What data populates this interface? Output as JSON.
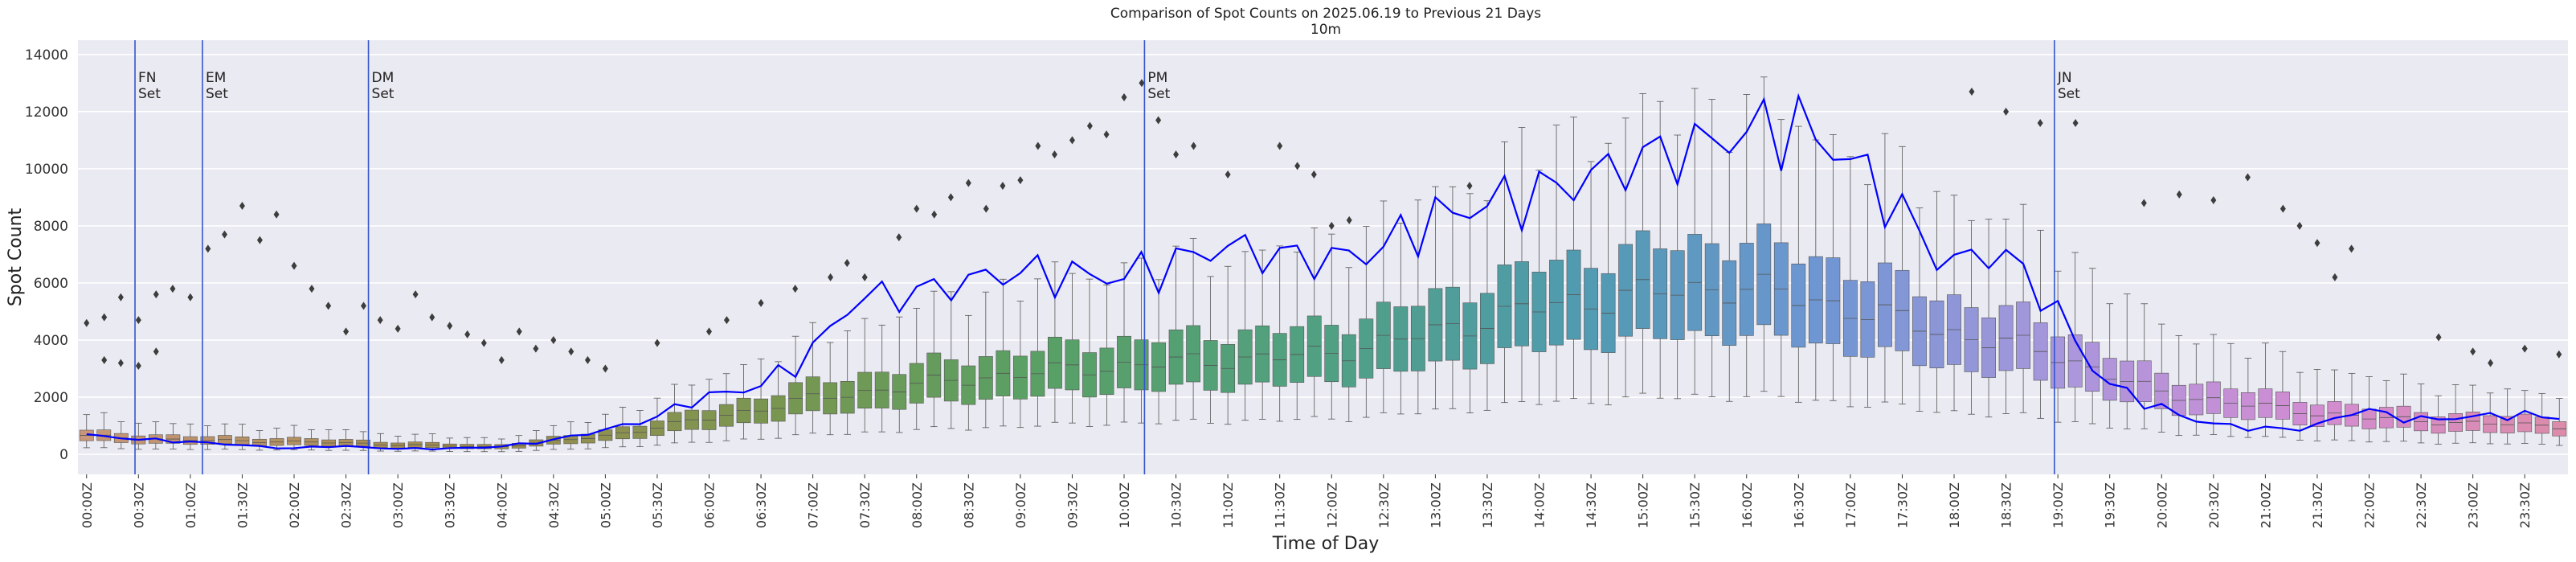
{
  "chart_data": {
    "type": "box",
    "title": "Comparison of Spot Counts on 2025.06.19 to Previous 21 Days",
    "subtitle": "10m",
    "xlabel": "Time of Day",
    "ylabel": "Spot Count",
    "ylim": [
      -700,
      14500
    ],
    "yticks": [
      0,
      2000,
      4000,
      6000,
      8000,
      10000,
      12000,
      14000
    ],
    "bin_minutes": 10,
    "xtick_labels": [
      "00:00Z",
      "00:30Z",
      "01:00Z",
      "01:30Z",
      "02:00Z",
      "02:30Z",
      "03:00Z",
      "03:30Z",
      "04:00Z",
      "04:30Z",
      "05:00Z",
      "05:30Z",
      "06:00Z",
      "06:30Z",
      "07:00Z",
      "07:30Z",
      "08:00Z",
      "08:30Z",
      "09:00Z",
      "09:30Z",
      "10:00Z",
      "10:30Z",
      "11:00Z",
      "11:30Z",
      "12:00Z",
      "12:30Z",
      "13:00Z",
      "13:30Z",
      "14:00Z",
      "14:30Z",
      "15:00Z",
      "15:30Z",
      "16:00Z",
      "16:30Z",
      "17:00Z",
      "17:30Z",
      "18:00Z",
      "18:30Z",
      "19:00Z",
      "19:30Z",
      "20:00Z",
      "20:30Z",
      "21:00Z",
      "21:30Z",
      "22:00Z",
      "22:30Z",
      "23:00Z",
      "23:30Z"
    ],
    "grid": true,
    "markers": [
      {
        "line1": "FN",
        "line2": "Set",
        "time_hours": 0.55
      },
      {
        "line1": "EM",
        "line2": "Set",
        "time_hours": 1.2
      },
      {
        "line1": "DM",
        "line2": "Set",
        "time_hours": 2.8
      },
      {
        "line1": "PM",
        "line2": "Set",
        "time_hours": 10.28
      },
      {
        "line1": "JN",
        "line2": "Set",
        "time_hours": 19.05
      }
    ],
    "median_profile": {
      "hours": [
        0,
        1,
        2,
        3,
        4,
        5,
        6,
        7,
        8,
        9,
        10,
        11,
        12,
        13,
        14,
        15,
        16,
        17,
        18,
        19,
        20,
        21,
        22,
        23,
        23.83
      ],
      "values": [
        650,
        500,
        450,
        350,
        250,
        600,
        1200,
        1900,
        2400,
        2800,
        3100,
        3300,
        3500,
        4200,
        5100,
        5600,
        5900,
        5200,
        4300,
        3600,
        2200,
        1700,
        1300,
        1100,
        1000
      ]
    },
    "iqr_half_fraction": 0.28,
    "whisker_low_fraction": 0.35,
    "whisker_high_fraction": 2.1,
    "current_day_series": {
      "name": "2025.06.19",
      "color": "#0000ff",
      "hours": [
        0,
        0.5,
        1,
        1.5,
        2,
        2.5,
        3,
        3.5,
        4,
        4.5,
        5,
        5.5,
        6,
        6.5,
        7,
        7.5,
        8,
        8.5,
        9,
        9.5,
        10,
        10.5,
        11,
        11.5,
        12,
        12.5,
        13,
        13.5,
        14,
        14.5,
        15,
        15.5,
        16,
        16.5,
        17,
        17.5,
        18,
        18.5,
        19,
        19.5,
        20,
        20.5,
        21,
        21.5,
        22,
        22.5,
        23,
        23.5,
        23.83
      ],
      "values": [
        700,
        550,
        450,
        350,
        200,
        300,
        200,
        200,
        250,
        450,
        800,
        1200,
        2000,
        2300,
        3300,
        5500,
        5600,
        6000,
        6400,
        6300,
        6200,
        6600,
        7300,
        7000,
        6800,
        7100,
        8200,
        8700,
        9100,
        9600,
        10300,
        10700,
        11200,
        11600,
        10600,
        8800,
        6600,
        7200,
        5400,
        2600,
        1700,
        1100,
        900,
        900,
        1600,
        1200,
        1300,
        1400,
        1300
      ]
    },
    "outliers": [
      {
        "t": 0.0,
        "v": 4600
      },
      {
        "t": 0.17,
        "v": 3300
      },
      {
        "t": 0.17,
        "v": 4800
      },
      {
        "t": 0.33,
        "v": 3200
      },
      {
        "t": 0.33,
        "v": 5500
      },
      {
        "t": 0.5,
        "v": 3100
      },
      {
        "t": 0.5,
        "v": 4700
      },
      {
        "t": 0.67,
        "v": 3600
      },
      {
        "t": 0.67,
        "v": 5600
      },
      {
        "t": 0.83,
        "v": 5800
      },
      {
        "t": 1.0,
        "v": 5500
      },
      {
        "t": 1.17,
        "v": 7200
      },
      {
        "t": 1.33,
        "v": 7700
      },
      {
        "t": 1.5,
        "v": 8700
      },
      {
        "t": 1.67,
        "v": 7500
      },
      {
        "t": 1.83,
        "v": 8400
      },
      {
        "t": 2.0,
        "v": 6600
      },
      {
        "t": 2.17,
        "v": 5800
      },
      {
        "t": 2.33,
        "v": 5200
      },
      {
        "t": 2.5,
        "v": 4300
      },
      {
        "t": 2.67,
        "v": 5200
      },
      {
        "t": 2.83,
        "v": 4700
      },
      {
        "t": 3.0,
        "v": 4400
      },
      {
        "t": 3.17,
        "v": 5600
      },
      {
        "t": 3.33,
        "v": 4800
      },
      {
        "t": 3.5,
        "v": 4500
      },
      {
        "t": 3.67,
        "v": 4200
      },
      {
        "t": 3.83,
        "v": 3900
      },
      {
        "t": 4.0,
        "v": 3300
      },
      {
        "t": 4.17,
        "v": 4300
      },
      {
        "t": 4.33,
        "v": 3700
      },
      {
        "t": 4.5,
        "v": 4000
      },
      {
        "t": 4.67,
        "v": 3600
      },
      {
        "t": 4.83,
        "v": 3300
      },
      {
        "t": 5.0,
        "v": 3000
      },
      {
        "t": 5.5,
        "v": 3900
      },
      {
        "t": 6.0,
        "v": 4300
      },
      {
        "t": 6.17,
        "v": 4700
      },
      {
        "t": 6.5,
        "v": 5300
      },
      {
        "t": 6.83,
        "v": 5800
      },
      {
        "t": 7.17,
        "v": 6200
      },
      {
        "t": 7.33,
        "v": 6700
      },
      {
        "t": 7.5,
        "v": 6200
      },
      {
        "t": 7.83,
        "v": 7600
      },
      {
        "t": 8.0,
        "v": 8600
      },
      {
        "t": 8.17,
        "v": 8400
      },
      {
        "t": 8.33,
        "v": 9000
      },
      {
        "t": 8.5,
        "v": 9500
      },
      {
        "t": 8.67,
        "v": 8600
      },
      {
        "t": 8.83,
        "v": 9400
      },
      {
        "t": 9.0,
        "v": 9600
      },
      {
        "t": 9.17,
        "v": 10800
      },
      {
        "t": 9.33,
        "v": 10500
      },
      {
        "t": 9.5,
        "v": 11000
      },
      {
        "t": 9.67,
        "v": 11500
      },
      {
        "t": 9.83,
        "v": 11200
      },
      {
        "t": 10.0,
        "v": 12500
      },
      {
        "t": 10.17,
        "v": 13000
      },
      {
        "t": 10.33,
        "v": 11700
      },
      {
        "t": 10.5,
        "v": 10500
      },
      {
        "t": 10.67,
        "v": 10800
      },
      {
        "t": 11.0,
        "v": 9800
      },
      {
        "t": 11.5,
        "v": 10800
      },
      {
        "t": 11.67,
        "v": 10100
      },
      {
        "t": 11.83,
        "v": 9800
      },
      {
        "t": 12.0,
        "v": 8000
      },
      {
        "t": 12.17,
        "v": 8200
      },
      {
        "t": 13.33,
        "v": 9400
      },
      {
        "t": 18.17,
        "v": 12700
      },
      {
        "t": 18.5,
        "v": 12000
      },
      {
        "t": 18.83,
        "v": 11600
      },
      {
        "t": 19.17,
        "v": 11600
      },
      {
        "t": 19.83,
        "v": 8800
      },
      {
        "t": 20.17,
        "v": 9100
      },
      {
        "t": 20.5,
        "v": 8900
      },
      {
        "t": 20.83,
        "v": 9700
      },
      {
        "t": 21.17,
        "v": 8600
      },
      {
        "t": 21.33,
        "v": 8000
      },
      {
        "t": 21.5,
        "v": 7400
      },
      {
        "t": 21.67,
        "v": 6200
      },
      {
        "t": 21.83,
        "v": 7200
      },
      {
        "t": 22.67,
        "v": 4100
      },
      {
        "t": 23.0,
        "v": 3600
      },
      {
        "t": 23.17,
        "v": 3200
      },
      {
        "t": 23.5,
        "v": 3700
      },
      {
        "t": 23.83,
        "v": 3500
      }
    ]
  }
}
